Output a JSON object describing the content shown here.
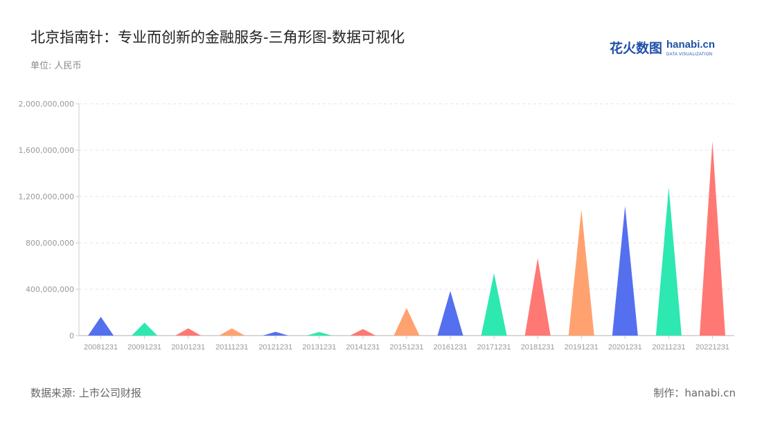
{
  "title": "北京指南针：专业而创新的金融服务-三角形图-数据可视化",
  "unit_label": "单位: 人民币",
  "logo": {
    "cn": "花火数图",
    "en": "hanabi.cn",
    "sub": "DATA VISUALIZATION"
  },
  "source": "数据来源: 上市公司财报",
  "maker": "制作：hanabi.cn",
  "chart_data": {
    "type": "bar",
    "bar_shape": "triangle",
    "categories": [
      "20081231",
      "20091231",
      "20101231",
      "20111231",
      "20121231",
      "20131231",
      "20141231",
      "20151231",
      "20161231",
      "20171231",
      "20181231",
      "20191231",
      "20201231",
      "20211231",
      "20221231"
    ],
    "values": [
      162000000,
      112000000,
      63000000,
      63000000,
      33000000,
      31000000,
      57000000,
      239000000,
      386000000,
      537000000,
      669000000,
      1087000000,
      1119000000,
      1278000000,
      1676000000
    ],
    "ylim": [
      0,
      2000000000
    ],
    "yticks": [
      0,
      400000000,
      800000000,
      1200000000,
      1600000000,
      2000000000
    ],
    "ytick_labels": [
      "0",
      "400,000,000",
      "800,000,000",
      "1,200,000,000",
      "1,600,000,000",
      "2,000,000,000"
    ],
    "grid": true,
    "colors": [
      "#5470ef",
      "#2de8b0",
      "#ff7873",
      "#ffa26f"
    ]
  }
}
